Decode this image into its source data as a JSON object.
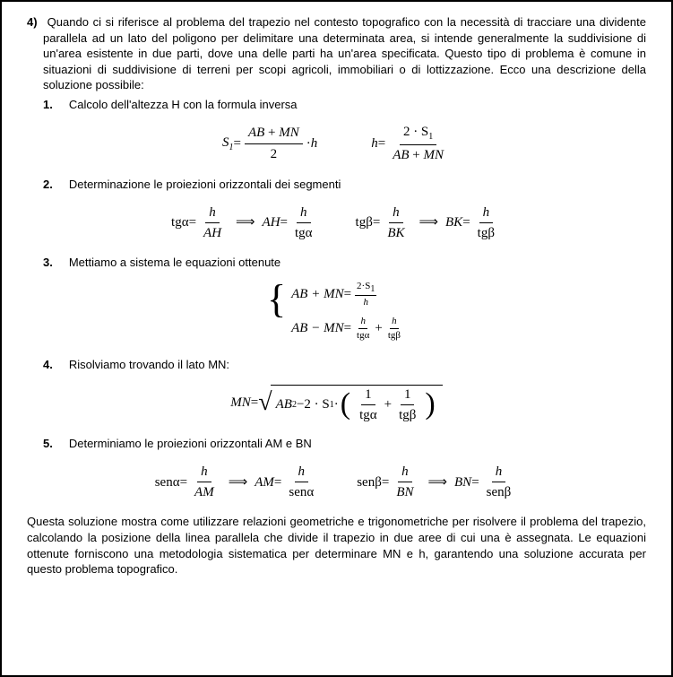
{
  "intro": {
    "number": "4)",
    "text": "Quando ci si riferisce al problema del trapezio nel contesto topografico con la necessità di tracciare una dividente parallela ad un lato del poligono per delimitare una determinata area, si intende generalmente la suddivisione di un'area esistente in due parti, dove una delle parti ha un'area specificata. Questo tipo di problema è comune in situazioni di suddivisione di terreni per scopi agricoli, immobiliari o di lottizzazione. Ecco una descrizione della soluzione possibile:"
  },
  "steps": {
    "s1": {
      "num": "1.",
      "text": "Calcolo dell'altezza H con la formula inversa"
    },
    "s2": {
      "num": "2.",
      "text": "Determinazione le proiezioni orizzontali dei segmenti"
    },
    "s3": {
      "num": "3.",
      "text": "Mettiamo a sistema le equazioni ottenute"
    },
    "s4": {
      "num": "4.",
      "text": "Risolviamo trovando il lato MN:"
    },
    "s5": {
      "num": "5.",
      "text": "Determiniamo le proiezioni orizzontali AM e BN"
    }
  },
  "math": {
    "S1": "S",
    "sub1": "1",
    "AB": "AB",
    "MN": "MN",
    "h": "h",
    "two": "2",
    "eq": " = ",
    "dot": " · ",
    "plus": " + ",
    "minus": " − ",
    "twoS1": "2 · S",
    "tga": "tgα",
    "tgb": "tgβ",
    "AH": "AH",
    "BK": "BK",
    "impl": "⟹",
    "brace_l1_lhs": "AB + MN",
    "brace_l2_lhs": "AB − MN",
    "twoS1_sm": "2·S",
    "h_sm": "h",
    "sqrt_lhs": "MN",
    "AB2": "AB",
    "sq": "2",
    "twoS1b": "2 · S",
    "one": "1",
    "sena": "senα",
    "senb": "senβ",
    "AM": "AM",
    "BN": "BN"
  },
  "conclusion": "Questa soluzione mostra come utilizzare relazioni geometriche e trigonometriche per risolvere il problema del trapezio, calcolando la posizione della linea parallela che divide il trapezio in due aree di cui una è assegnata. Le equazioni ottenute forniscono una metodologia sistematica per determinare MN e h, garantendo una soluzione accurata per questo problema topografico."
}
